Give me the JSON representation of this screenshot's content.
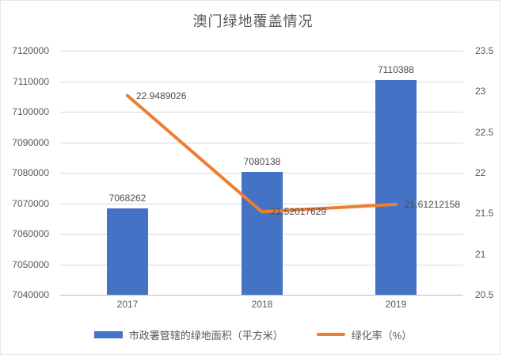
{
  "chart_data": {
    "type": "combo-bar-line",
    "title": "澳门绿地覆盖情况",
    "categories": [
      "2017",
      "2018",
      "2019"
    ],
    "series": [
      {
        "name": "市政署管辖的绿地面积（平方米）",
        "type": "bar",
        "axis": "left",
        "color": "#4472C4",
        "values": [
          7068262,
          7080138,
          7110388
        ],
        "data_labels": [
          "7068262",
          "7080138",
          "7110388"
        ]
      },
      {
        "name": "绿化率（%）",
        "type": "line",
        "axis": "right",
        "color": "#ED7D31",
        "values": [
          22.9489026,
          21.52017629,
          21.61212158
        ],
        "data_labels": [
          "22.9489026",
          "21.52017629",
          "21.61212158"
        ]
      }
    ],
    "left_axis": {
      "min": 7040000,
      "max": 7120000,
      "step": 10000,
      "ticks": [
        "7120000",
        "7110000",
        "7100000",
        "7090000",
        "7080000",
        "7070000",
        "7060000",
        "7050000",
        "7040000"
      ]
    },
    "right_axis": {
      "min": 20.5,
      "max": 23.5,
      "step": 0.5,
      "ticks": [
        "23.5",
        "23",
        "22.5",
        "22",
        "21.5",
        "21",
        "20.5"
      ]
    },
    "grid": true,
    "legend_position": "bottom",
    "colors": {
      "grid": "#D9D9D9",
      "axis_line": "#BFBFBF",
      "text": "#595959",
      "title": "#595959"
    }
  }
}
